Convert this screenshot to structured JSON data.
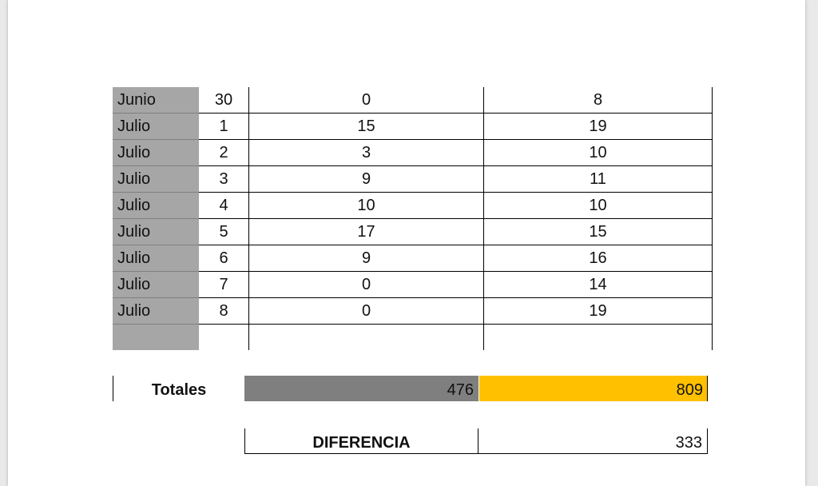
{
  "table": {
    "rows": [
      {
        "month": "Junio",
        "day": "30",
        "a": "0",
        "b": "8"
      },
      {
        "month": "Julio",
        "day": "1",
        "a": "15",
        "b": "19"
      },
      {
        "month": "Julio",
        "day": "2",
        "a": "3",
        "b": "10"
      },
      {
        "month": "Julio",
        "day": "3",
        "a": "9",
        "b": "11"
      },
      {
        "month": "Julio",
        "day": "4",
        "a": "10",
        "b": "10"
      },
      {
        "month": "Julio",
        "day": "5",
        "a": "17",
        "b": "15"
      },
      {
        "month": "Julio",
        "day": "6",
        "a": "9",
        "b": "16"
      },
      {
        "month": "Julio",
        "day": "7",
        "a": "0",
        "b": "14"
      },
      {
        "month": "Julio",
        "day": "8",
        "a": "0",
        "b": "19"
      },
      {
        "month": "",
        "day": "",
        "a": "",
        "b": ""
      }
    ]
  },
  "totals": {
    "label": "Totales",
    "a": "476",
    "b": "809"
  },
  "difference": {
    "label": "DIFERENCIA",
    "value": "333"
  },
  "colors": {
    "month_fill": "#a6a6a6",
    "total_a_fill": "#7f7f7f",
    "total_b_fill": "#ffc000"
  }
}
